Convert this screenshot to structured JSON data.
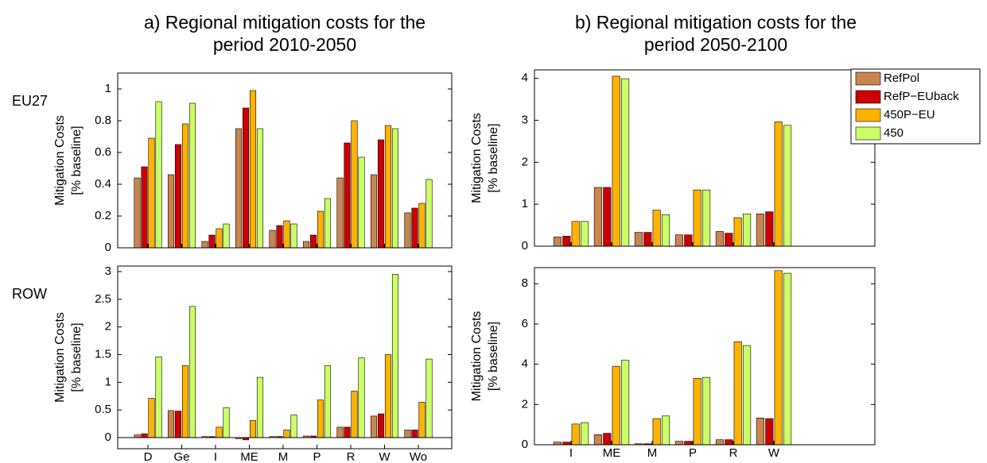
{
  "chart_data": [
    {
      "type": "bar",
      "title": [
        "a) Regional mitigation costs for the",
        "period 2010-2050"
      ],
      "row_label": "EU27",
      "ylabel": [
        "Mitigation Costs",
        "[% baseline]"
      ],
      "ylim": [
        0,
        1.1
      ],
      "yticks": [
        0,
        0.2,
        0.4,
        0.6,
        0.8,
        1
      ],
      "series": [
        {
          "color": "#c8864e",
          "values": [
            0.44,
            0.46,
            0.04,
            0.75,
            0.11,
            0.04,
            0.44,
            0.46,
            0.22
          ]
        },
        {
          "color": "#cc0000",
          "values": [
            0.51,
            0.65,
            0.08,
            0.88,
            0.14,
            0.08,
            0.66,
            0.68,
            0.25
          ]
        },
        {
          "color": "#ffb300",
          "values": [
            0.69,
            0.78,
            0.12,
            0.99,
            0.17,
            0.23,
            0.8,
            0.77,
            0.28
          ]
        },
        {
          "color": "#ccff66",
          "values": [
            0.92,
            0.91,
            0.15,
            0.75,
            0.15,
            0.31,
            0.57,
            0.75,
            0.43
          ]
        }
      ]
    },
    {
      "type": "bar",
      "row_label": "ROW",
      "ylabel": [
        "Mitigation Costs",
        "[% baseline]"
      ],
      "categories": [
        "D",
        "Ge",
        "I",
        "ME",
        "M",
        "P",
        "R",
        "W",
        "Wo"
      ],
      "ylim": [
        -0.2,
        3.1
      ],
      "yticks": [
        0,
        0.5,
        1,
        1.5,
        2,
        2.5,
        3
      ],
      "zero_line": true,
      "series": [
        {
          "color": "#c8864e",
          "values": [
            0.05,
            0.49,
            0.02,
            -0.02,
            0.02,
            0.03,
            0.19,
            0.39,
            0.14
          ]
        },
        {
          "color": "#cc0000",
          "values": [
            0.07,
            0.48,
            0.02,
            -0.04,
            0.02,
            0.03,
            0.19,
            0.43,
            0.14
          ]
        },
        {
          "color": "#ffb300",
          "values": [
            0.71,
            1.3,
            0.19,
            0.31,
            0.14,
            0.68,
            0.84,
            1.5,
            0.64
          ]
        },
        {
          "color": "#ccff66",
          "values": [
            1.46,
            2.37,
            0.54,
            1.09,
            0.41,
            1.3,
            1.44,
            2.95,
            1.42
          ]
        }
      ]
    },
    {
      "type": "bar",
      "title": [
        "b) Regional mitigation costs for the",
        "period 2050-2100"
      ],
      "ylabel": [
        "Mitigation Costs",
        "[% baseline]"
      ],
      "ylim": [
        0,
        4.2
      ],
      "yticks": [
        0,
        1,
        2,
        3,
        4
      ],
      "legend": "upper right",
      "series": [
        {
          "name": "RefPol",
          "color": "#c8864e",
          "values": [
            0.22,
            1.4,
            0.33,
            0.27,
            0.35,
            0.77
          ]
        },
        {
          "name": "RefP−EUback",
          "color": "#cc0000",
          "values": [
            0.24,
            1.4,
            0.33,
            0.27,
            0.31,
            0.82
          ]
        },
        {
          "name": "450P−EU",
          "color": "#ffb300",
          "values": [
            0.59,
            4.05,
            0.86,
            1.34,
            0.68,
            2.96
          ]
        },
        {
          "name": "450",
          "color": "#ccff66",
          "values": [
            0.59,
            3.99,
            0.75,
            1.34,
            0.77,
            2.88
          ]
        }
      ]
    },
    {
      "type": "bar",
      "ylabel": [
        "Mitigation Costs",
        "[% baseline]"
      ],
      "categories": [
        "I",
        "ME",
        "M",
        "P",
        "R",
        "W"
      ],
      "ylim": [
        0,
        8.8
      ],
      "yticks": [
        0,
        2,
        4,
        6,
        8
      ],
      "series": [
        {
          "color": "#c8864e",
          "values": [
            0.13,
            0.5,
            0.05,
            0.17,
            0.25,
            1.33
          ]
        },
        {
          "color": "#cc0000",
          "values": [
            0.13,
            0.57,
            0.05,
            0.17,
            0.25,
            1.3
          ]
        },
        {
          "color": "#ffb300",
          "values": [
            1.03,
            3.9,
            1.3,
            3.3,
            5.12,
            8.65
          ]
        },
        {
          "color": "#ccff66",
          "values": [
            1.1,
            4.2,
            1.43,
            3.35,
            4.93,
            8.52
          ]
        }
      ]
    }
  ]
}
